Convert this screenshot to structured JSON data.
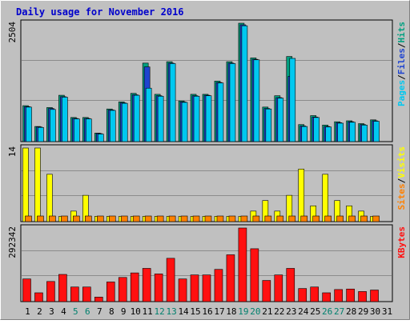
{
  "colors": {
    "background": "#C0C0C0",
    "border_light": "#FFFFFF",
    "border_dark": "#808080",
    "title": "#0000CC",
    "hits": "#00A080",
    "files": "#1E44D0",
    "pages": "#00C8F0",
    "visits": "#FFFF00",
    "sites": "#FF8000",
    "kbytes": "#FF1010",
    "gridline": "#8C8C8C",
    "day_label": "#000000",
    "weekend_label": "#00806E"
  },
  "chart_data": [
    {
      "type": "bar",
      "title": "Daily usage for November 2016",
      "categories": [
        "1",
        "2",
        "3",
        "4",
        "5",
        "6",
        "7",
        "8",
        "9",
        "10",
        "11",
        "12",
        "13",
        "14",
        "15",
        "16",
        "17",
        "18",
        "19",
        "20",
        "21",
        "22",
        "23",
        "24",
        "25",
        "26",
        "27",
        "28",
        "29",
        "30",
        "31"
      ],
      "weekend_days": [
        "5",
        "6",
        "12",
        "13",
        "19",
        "20",
        "26",
        "27"
      ],
      "ymax_label": "2504",
      "ylim": [
        0,
        2504
      ],
      "legend": [
        "Pages",
        "Files",
        "Hits"
      ],
      "series": [
        {
          "name": "Hits",
          "values": [
            760,
            320,
            720,
            980,
            510,
            510,
            180,
            690,
            840,
            1020,
            1660,
            1000,
            1690,
            860,
            1000,
            1000,
            1280,
            1690,
            2504,
            1770,
            730,
            970,
            1800,
            360,
            550,
            350,
            420,
            440,
            380,
            460,
            0
          ]
        },
        {
          "name": "Files",
          "values": [
            740,
            310,
            700,
            950,
            490,
            490,
            170,
            670,
            820,
            990,
            1580,
            970,
            1660,
            840,
            970,
            980,
            1250,
            1660,
            2470,
            1740,
            700,
            930,
            1380,
            330,
            520,
            320,
            400,
            420,
            360,
            440,
            0
          ]
        },
        {
          "name": "Pages",
          "values": [
            730,
            300,
            680,
            940,
            480,
            480,
            160,
            660,
            810,
            980,
            1130,
            960,
            1650,
            830,
            960,
            970,
            1240,
            1650,
            2450,
            1730,
            690,
            920,
            1760,
            320,
            510,
            310,
            390,
            410,
            350,
            430,
            0
          ]
        }
      ]
    },
    {
      "type": "bar",
      "categories": [
        "1",
        "2",
        "3",
        "4",
        "5",
        "6",
        "7",
        "8",
        "9",
        "10",
        "11",
        "12",
        "13",
        "14",
        "15",
        "16",
        "17",
        "18",
        "19",
        "20",
        "21",
        "22",
        "23",
        "24",
        "25",
        "26",
        "27",
        "28",
        "29",
        "30",
        "31"
      ],
      "ymax_label": "14",
      "ylim": [
        0,
        14
      ],
      "legend": [
        "Sites",
        "Visits"
      ],
      "series": [
        {
          "name": "Visits",
          "values": [
            14,
            14,
            9,
            1,
            2,
            5,
            1,
            1,
            1,
            1,
            1,
            1,
            1,
            1,
            1,
            1,
            1,
            1,
            1,
            2,
            4,
            2,
            5,
            10,
            3,
            9,
            4,
            3,
            2,
            1,
            0
          ]
        },
        {
          "name": "Sites",
          "values": [
            1,
            1,
            1,
            1,
            1,
            1,
            1,
            1,
            1,
            1,
            1,
            1,
            1,
            1,
            1,
            1,
            1,
            1,
            1,
            1,
            1,
            1,
            1,
            1,
            1,
            1,
            1,
            1,
            1,
            1,
            0
          ]
        }
      ]
    },
    {
      "type": "bar",
      "categories": [
        "1",
        "2",
        "3",
        "4",
        "5",
        "6",
        "7",
        "8",
        "9",
        "10",
        "11",
        "12",
        "13",
        "14",
        "15",
        "16",
        "17",
        "18",
        "19",
        "20",
        "21",
        "22",
        "23",
        "24",
        "25",
        "26",
        "27",
        "28",
        "29",
        "30",
        "31"
      ],
      "ymax_label": "292342",
      "ylim": [
        0,
        292342
      ],
      "legend": [
        "KBytes"
      ],
      "series": [
        {
          "name": "KBytes",
          "values": [
            90000,
            35000,
            80000,
            108000,
            58000,
            58000,
            18000,
            78000,
            96000,
            114000,
            132000,
            110000,
            172000,
            90000,
            106000,
            106000,
            128000,
            186000,
            292342,
            210000,
            84000,
            106000,
            132000,
            52000,
            58000,
            35000,
            48000,
            50000,
            40000,
            46000,
            0
          ]
        }
      ]
    }
  ]
}
